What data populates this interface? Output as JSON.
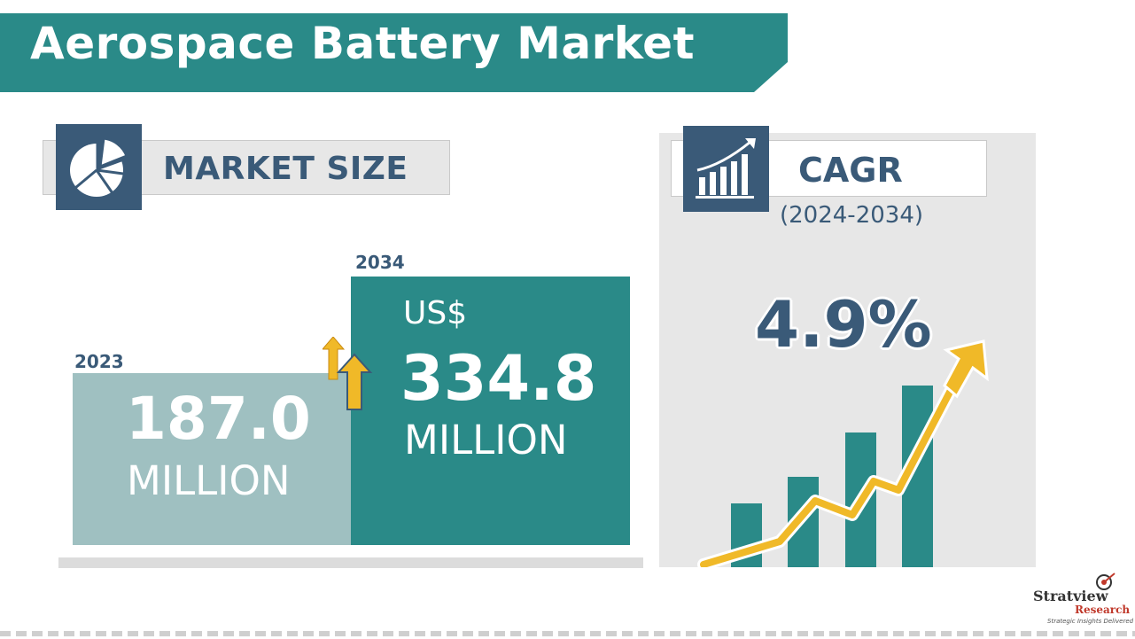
{
  "title": "Aerospace Battery Market",
  "market_size": {
    "label": "MARKET SIZE",
    "year_2023": "2023",
    "value_2023": "187.0",
    "unit_2023": "MILLION",
    "year_2034": "2034",
    "currency_2034": "US$",
    "value_2034": "334.8",
    "unit_2034": "MILLION"
  },
  "cagr": {
    "label": "CAGR",
    "period": "(2024-2034)",
    "value": "4.9%"
  },
  "brand": {
    "name": "Stratview",
    "sub": "Research",
    "tagline": "Strategic Insights Delivered"
  },
  "icons": [
    "pie-chart-icon",
    "bar-chart-icon",
    "up-arrow-icon"
  ],
  "colors": {
    "teal": "#2a8a88",
    "light_teal": "#9fc0c1",
    "navy": "#3a5a78",
    "gold": "#f0b928"
  }
}
